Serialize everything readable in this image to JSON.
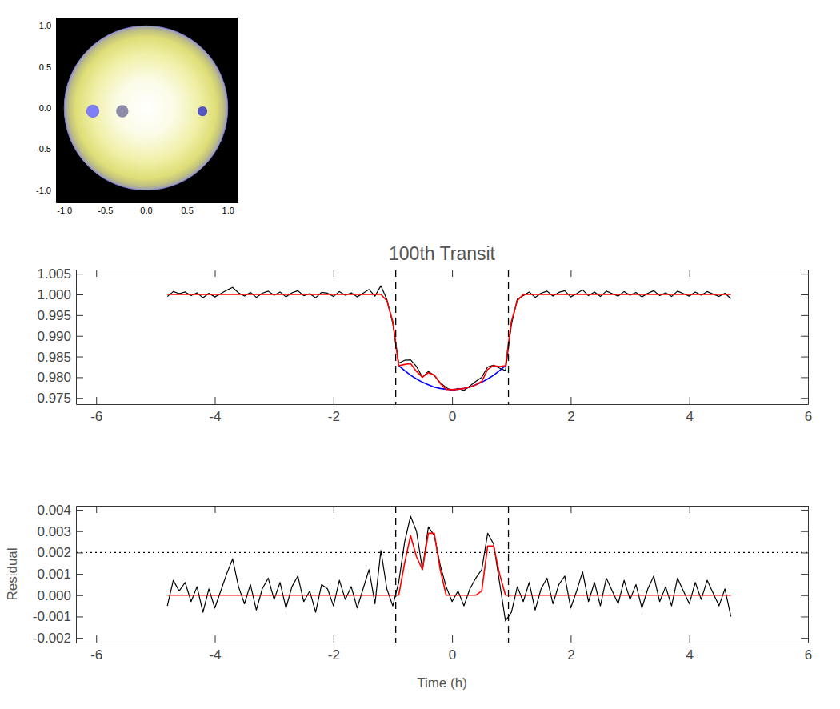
{
  "chart_data": [
    {
      "type": "scatter",
      "xlim": [
        -1.1,
        1.12
      ],
      "ylim": [
        -1.15,
        1.1
      ],
      "xticks": [
        {
          "value": -1,
          "label": "-1.0"
        },
        -0.5,
        {
          "value": 0,
          "label": "0.0"
        },
        0.5,
        {
          "value": 1,
          "label": "1.0"
        }
      ],
      "yticks": [
        {
          "value": -1,
          "label": "-1.0"
        },
        -0.5,
        {
          "value": 0,
          "label": "0.0"
        },
        0.5,
        {
          "value": 1,
          "label": "1.0"
        }
      ],
      "disk": {
        "x": 0,
        "y": 0,
        "radius": 1
      },
      "x": [
        -0.65,
        -0.29,
        0.69
      ],
      "values": [
        -0.04,
        -0.04,
        -0.04
      ],
      "size": [
        0.08,
        0.075,
        0.06
      ],
      "colors": [
        "#7f7ff5",
        "#8c8ca8",
        "#5656c0"
      ]
    },
    {
      "type": "line",
      "title": "100th Transit",
      "x": [
        -4.8,
        -4.7,
        -4.6,
        -4.5,
        -4.4,
        -4.3,
        -4.2,
        -4.1,
        -4.0,
        -3.9,
        -3.8,
        -3.7,
        -3.6,
        -3.5,
        -3.4,
        -3.3,
        -3.2,
        -3.1,
        -3.0,
        -2.9,
        -2.8,
        -2.7,
        -2.6,
        -2.5,
        -2.4,
        -2.3,
        -2.2,
        -2.1,
        -2.0,
        -1.9,
        -1.8,
        -1.7,
        -1.6,
        -1.5,
        -1.4,
        -1.3,
        -1.2,
        -1.1,
        -1.0,
        -0.9,
        -0.8,
        -0.7,
        -0.6,
        -0.5,
        -0.4,
        -0.3,
        -0.2,
        -0.1,
        0.0,
        0.1,
        0.2,
        0.3,
        0.4,
        0.5,
        0.6,
        0.7,
        0.8,
        0.9,
        1.0,
        1.1,
        1.2,
        1.3,
        1.4,
        1.5,
        1.6,
        1.7,
        1.8,
        1.9,
        2.0,
        2.1,
        2.2,
        2.3,
        2.4,
        2.5,
        2.6,
        2.7,
        2.8,
        2.9,
        3.0,
        3.1,
        3.2,
        3.3,
        3.4,
        3.5,
        3.6,
        3.7,
        3.8,
        3.9,
        4.0,
        4.1,
        4.2,
        4.3,
        4.4,
        4.5,
        4.6,
        4.7
      ],
      "series": [
        {
          "color": "#000000",
          "values": [
            0.9995,
            1.0007,
            1.0002,
            1.0006,
            0.9997,
            1.0004,
            0.9992,
            1.0003,
            0.9994,
            1.0002,
            1.001,
            1.0017,
            1.0004,
            0.9996,
            1.0005,
            0.9993,
            1.0003,
            1.0008,
            0.9998,
            1.0006,
            0.9994,
            1.0004,
            1.0009,
            0.9997,
            1.0002,
            0.9992,
            1.0005,
            1.0003,
            0.9995,
            1.0007,
            0.9998,
            1.0004,
            0.9994,
            1.0003,
            1.0012,
            0.9996,
            1.0021,
            0.9988,
            0.993,
            0.9834,
            0.9841,
            0.9842,
            0.9826,
            0.98,
            0.9814,
            0.9804,
            0.9787,
            0.9775,
            0.9767,
            0.9773,
            0.9768,
            0.9779,
            0.979,
            0.98,
            0.9825,
            0.9829,
            0.9822,
            0.9816,
            0.9927,
            0.9989,
            0.9997,
            1.0006,
            0.9993,
            1.0003,
            1.0008,
            0.9996,
            1.0005,
            1.0009,
            0.9994,
            1.0002,
            1.0011,
            0.9997,
            1.0006,
            0.9995,
            1.0008,
            1.0002,
            0.9996,
            1.0007,
            0.9998,
            1.0005,
            0.9994,
            1.0003,
            1.0009,
            0.9997,
            1.0004,
            0.9995,
            1.0008,
            1.0002,
            0.9996,
            1.0006,
            0.9998,
            1.0007,
            1.0001,
            0.9995,
            1.0003,
            0.999
          ]
        },
        {
          "color": "#0000ff",
          "values": [
            null,
            null,
            null,
            null,
            null,
            null,
            null,
            null,
            null,
            null,
            null,
            null,
            null,
            null,
            null,
            null,
            null,
            null,
            null,
            null,
            null,
            null,
            null,
            null,
            null,
            null,
            null,
            null,
            null,
            null,
            null,
            null,
            null,
            null,
            null,
            null,
            null,
            null,
            null,
            0.9828,
            0.9816,
            0.9805,
            0.9796,
            0.9788,
            0.9782,
            0.9776,
            0.9773,
            0.9771,
            0.977,
            0.9771,
            0.9773,
            0.9776,
            0.9782,
            0.9788,
            0.9796,
            0.9805,
            0.9816,
            0.9828,
            null,
            null,
            null,
            null,
            null,
            null,
            null,
            null,
            null,
            null,
            null,
            null,
            null,
            null,
            null,
            null,
            null,
            null,
            null,
            null,
            null,
            null,
            null,
            null,
            null,
            null,
            null,
            null,
            null,
            null,
            null,
            null,
            null,
            null,
            null,
            null,
            null,
            null
          ]
        },
        {
          "color": "#ff0000",
          "values": [
            1,
            1,
            1,
            1,
            1,
            1,
            1,
            1,
            1,
            1,
            1,
            1,
            1,
            1,
            1,
            1,
            1,
            1,
            1,
            1,
            1,
            1,
            1,
            1,
            1,
            1,
            1,
            1,
            1,
            1,
            1,
            1,
            1,
            1,
            1,
            1,
            1,
            0.9985,
            0.9935,
            0.9828,
            0.9831,
            0.9833,
            0.9814,
            0.98,
            0.9811,
            0.9805,
            0.9785,
            0.9771,
            0.977,
            0.9771,
            0.9773,
            0.9776,
            0.9782,
            0.979,
            0.9819,
            0.9828,
            0.9826,
            0.9828,
            0.9935,
            0.9985,
            1,
            1,
            1,
            1,
            1,
            1,
            1,
            1,
            1,
            1,
            1,
            1,
            1,
            1,
            1,
            1,
            1,
            1,
            1,
            1,
            1,
            1,
            1,
            1,
            1,
            1,
            1,
            1,
            1,
            1,
            1,
            1,
            1,
            1,
            1,
            1
          ]
        }
      ],
      "xlim": [
        -6.34,
        6
      ],
      "xticks": [
        -6,
        -4,
        -2,
        0,
        2,
        4,
        6
      ],
      "ylim": [
        0.9735,
        1.006
      ],
      "yticks": [
        0.975,
        {
          "value": 0.98,
          "label": "0.980"
        },
        0.985,
        {
          "value": 0.99,
          "label": "0.990"
        },
        0.995,
        {
          "value": 1,
          "label": "1.000"
        },
        1.005
      ],
      "vlines": [
        -0.95,
        0.95
      ]
    },
    {
      "type": "line",
      "x_label": "Time (h)",
      "y_label": "Residual",
      "x": [
        -4.8,
        -4.7,
        -4.6,
        -4.5,
        -4.4,
        -4.3,
        -4.2,
        -4.1,
        -4.0,
        -3.9,
        -3.8,
        -3.7,
        -3.6,
        -3.5,
        -3.4,
        -3.3,
        -3.2,
        -3.1,
        -3.0,
        -2.9,
        -2.8,
        -2.7,
        -2.6,
        -2.5,
        -2.4,
        -2.3,
        -2.2,
        -2.1,
        -2.0,
        -1.9,
        -1.8,
        -1.7,
        -1.6,
        -1.5,
        -1.4,
        -1.3,
        -1.2,
        -1.1,
        -1.0,
        -0.9,
        -0.8,
        -0.7,
        -0.6,
        -0.5,
        -0.4,
        -0.3,
        -0.2,
        -0.1,
        0.0,
        0.1,
        0.2,
        0.3,
        0.4,
        0.5,
        0.6,
        0.7,
        0.8,
        0.9,
        1.0,
        1.1,
        1.2,
        1.3,
        1.4,
        1.5,
        1.6,
        1.7,
        1.8,
        1.9,
        2.0,
        2.1,
        2.2,
        2.3,
        2.4,
        2.5,
        2.6,
        2.7,
        2.8,
        2.9,
        3.0,
        3.1,
        3.2,
        3.3,
        3.4,
        3.5,
        3.6,
        3.7,
        3.8,
        3.9,
        4.0,
        4.1,
        4.2,
        4.3,
        4.4,
        4.5,
        4.6,
        4.7
      ],
      "series": [
        {
          "color": "#000000",
          "values": [
            -0.0005,
            0.0007,
            0.0002,
            0.0006,
            -0.0003,
            0.0004,
            -0.0008,
            0.0003,
            -0.0006,
            0.0002,
            0.001,
            0.0017,
            0.0004,
            -0.0004,
            0.0005,
            -0.0007,
            0.0003,
            0.0008,
            -0.0002,
            0.0006,
            -0.0006,
            0.0004,
            0.0009,
            -0.0003,
            0.0002,
            -0.0008,
            0.0005,
            0.0003,
            -0.0005,
            0.0007,
            -0.0002,
            0.0004,
            -0.0006,
            0.0003,
            0.0012,
            -0.0004,
            0.0021,
            0.0003,
            -0.0005,
            0.0006,
            0.0025,
            0.0037,
            0.003,
            0.0012,
            0.0032,
            0.0028,
            0.0014,
            0.0004,
            -0.0003,
            0.0002,
            -0.0005,
            0.0003,
            0.0008,
            0.0012,
            0.0029,
            0.0024,
            0.0006,
            -0.0012,
            -0.0008,
            0.0004,
            -0.0003,
            0.0006,
            -0.0007,
            0.0003,
            0.0008,
            -0.0004,
            0.0005,
            0.0009,
            -0.0006,
            0.0002,
            0.0011,
            -0.0003,
            0.0006,
            -0.0005,
            0.0008,
            0.0002,
            -0.0004,
            0.0007,
            -0.0002,
            0.0005,
            -0.0006,
            0.0003,
            0.0009,
            -0.0003,
            0.0004,
            -0.0005,
            0.0008,
            0.0002,
            -0.0004,
            0.0006,
            -0.0002,
            0.0007,
            0.0001,
            -0.0005,
            0.0003,
            -0.001
          ]
        },
        {
          "color": "#ff0000",
          "values": [
            0,
            0,
            0,
            0,
            0,
            0,
            0,
            0,
            0,
            0,
            0,
            0,
            0,
            0,
            0,
            0,
            0,
            0,
            0,
            0,
            0,
            0,
            0,
            0,
            0,
            0,
            0,
            0,
            0,
            0,
            0,
            0,
            0,
            0,
            0,
            0,
            0,
            0,
            0,
            0,
            0.0015,
            0.0028,
            0.0018,
            0.0012,
            0.0029,
            0.0029,
            0.0012,
            0,
            0,
            0,
            0,
            0,
            0,
            0.0002,
            0.0023,
            0.0023,
            0.001,
            0,
            0,
            0,
            0,
            0,
            0,
            0,
            0,
            0,
            0,
            0,
            0,
            0,
            0,
            0,
            0,
            0,
            0,
            0,
            0,
            0,
            0,
            0,
            0,
            0,
            0,
            0,
            0,
            0,
            0,
            0,
            0,
            0,
            0,
            0,
            0,
            0,
            0,
            0
          ]
        }
      ],
      "xlim": [
        -6.34,
        6
      ],
      "xticks": [
        -6,
        -4,
        -2,
        0,
        2,
        4,
        6
      ],
      "ylim": [
        -0.00222,
        0.00419
      ],
      "yticks": [
        -0.002,
        -0.001,
        {
          "value": 0,
          "label": "0.000"
        },
        0.001,
        0.002,
        0.003,
        0.004
      ],
      "hlines": [
        0.002
      ],
      "vlines": [
        -0.95,
        0.95
      ]
    }
  ]
}
